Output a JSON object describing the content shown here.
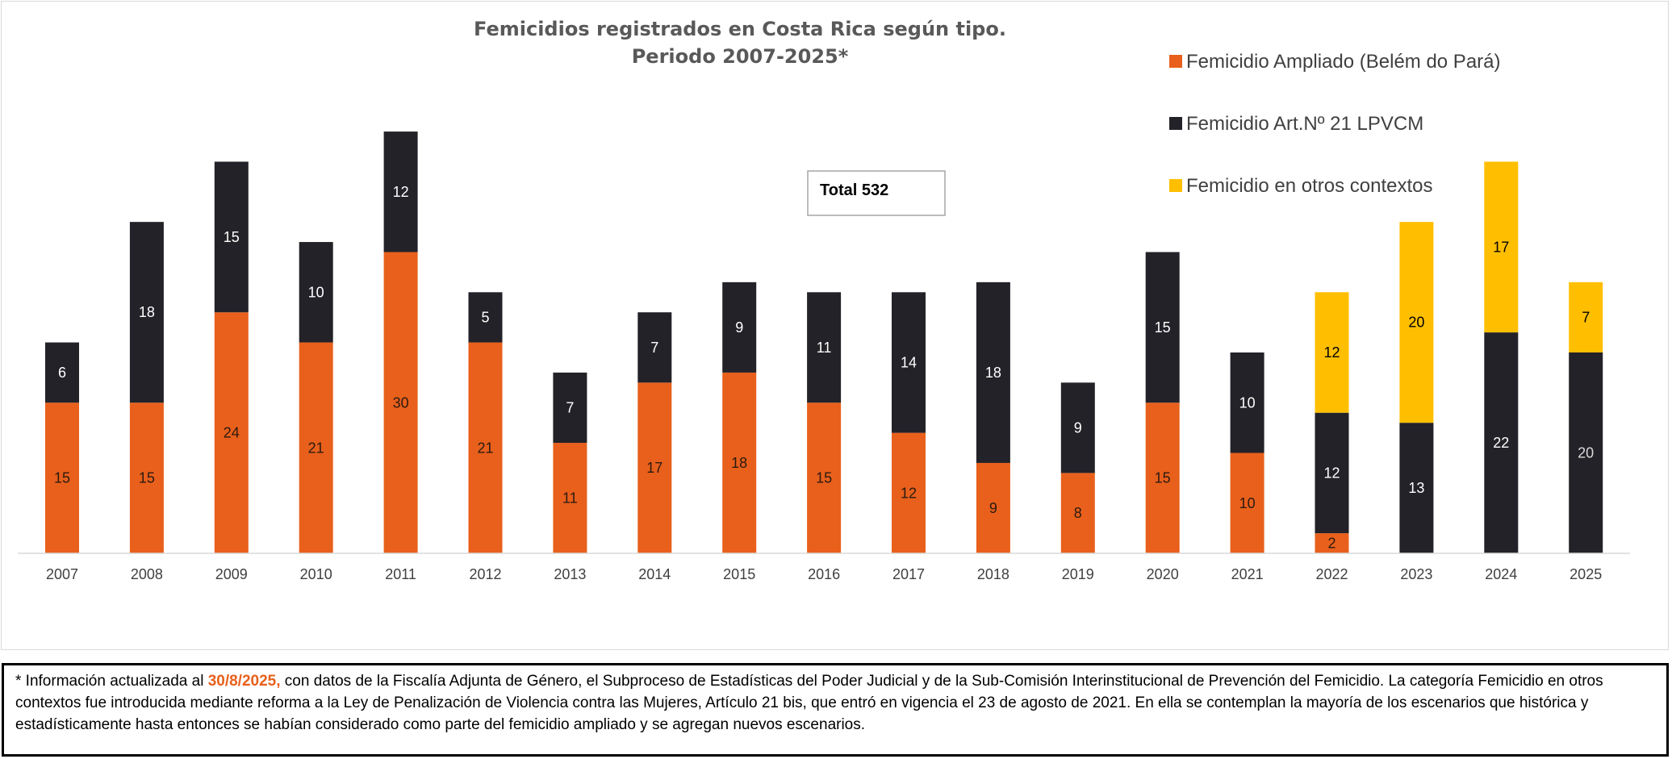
{
  "chart_data": {
    "type": "bar",
    "stacked": true,
    "title_lines": [
      "Femicidios registrados en Costa Rica según tipo.",
      "Periodo 2007-2025*"
    ],
    "categories": [
      "2007",
      "2008",
      "2009",
      "2010",
      "2011",
      "2012",
      "2013",
      "2014",
      "2015",
      "2016",
      "2017",
      "2018",
      "2019",
      "2020",
      "2021",
      "2022",
      "2023",
      "2024",
      "2025"
    ],
    "series": [
      {
        "name": "Femicidio Ampliado (Belém do Pará)",
        "color": "#e8601c",
        "values": [
          15,
          15,
          24,
          21,
          30,
          21,
          11,
          17,
          18,
          15,
          12,
          9,
          8,
          15,
          10,
          2,
          0,
          0,
          0
        ]
      },
      {
        "name": "Femicidio Art.Nº 21 LPVCM",
        "color": "#232228",
        "values": [
          6,
          18,
          15,
          10,
          12,
          5,
          7,
          7,
          9,
          11,
          14,
          18,
          9,
          15,
          10,
          12,
          13,
          22,
          20
        ]
      },
      {
        "name": "Femicidio en otros contextos",
        "color": "#ffbf00",
        "values": [
          0,
          0,
          0,
          0,
          0,
          0,
          0,
          0,
          0,
          0,
          0,
          0,
          0,
          0,
          0,
          12,
          20,
          17,
          7
        ]
      }
    ],
    "ylim": [
      0,
      42
    ],
    "grid": false,
    "legend_position": "top-right",
    "annotation": "Total 532"
  },
  "footnote": {
    "prefix": "* Información actualizada al ",
    "date": "30/8/2025,",
    "rest": " con datos de la Fiscalía Adjunta de Género, el Subproceso de Estadísticas del Poder Judicial y de la Sub-Comisión Interinstitucional de Prevención del Femicidio.  La categoría Femicidio en otros contextos fue introducida mediante reforma a la Ley de Penalización de Violencia contra las Mujeres, Artículo 21 bis, que entró en vigencia el 23 de agosto de 2021. En ella se contemplan la mayoría de los escenarios que histórica y estadísticamente hasta entonces se habían considerado como parte del femicidio ampliado y se agregan nuevos escenarios."
  }
}
